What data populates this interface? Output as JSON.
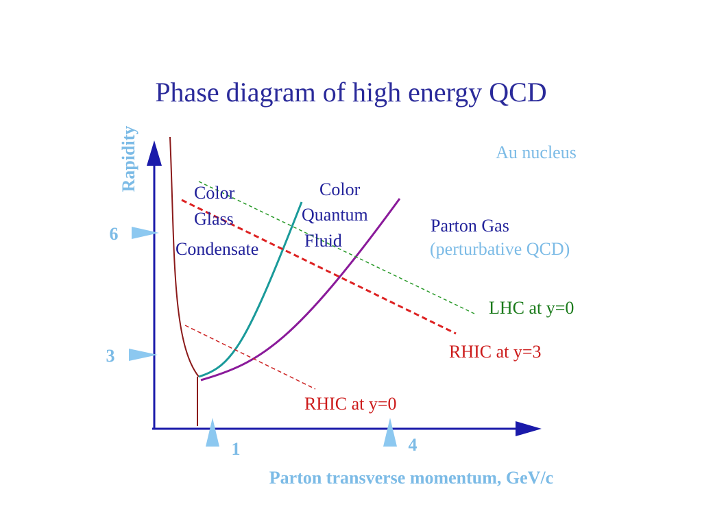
{
  "title": "Phase diagram of high energy QCD",
  "axes": {
    "y_label": "Rapidity",
    "x_label": "Parton transverse momentum, GeV/c"
  },
  "y_markers": [
    "6",
    "3"
  ],
  "x_markers": [
    "1",
    "4"
  ],
  "regions": {
    "nucleus": "Au nucleus",
    "cgc": [
      "Color",
      "Glass",
      "Condensate"
    ],
    "cqf": [
      "Color",
      "Quantum",
      "Fluid"
    ],
    "parton_gas": "Parton Gas",
    "parton_gas_note": "(perturbative QCD)"
  },
  "lines": {
    "lhc": "LHC at y=0",
    "rhic_y3": "RHIC at y=3",
    "rhic_y0": "RHIC at y=0"
  }
}
